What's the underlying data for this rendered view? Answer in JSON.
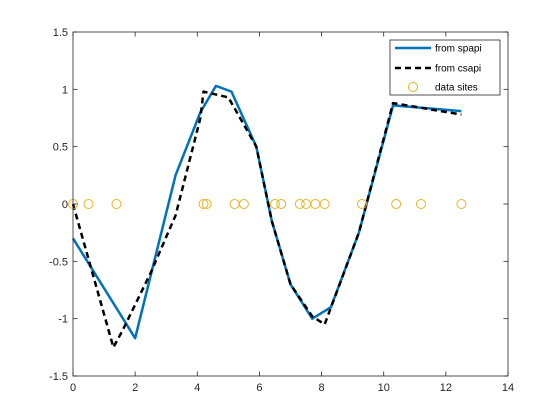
{
  "chart_data": {
    "type": "line",
    "title": "",
    "xlabel": "",
    "ylabel": "",
    "xlim": [
      0,
      14
    ],
    "ylim": [
      -1.5,
      1.5
    ],
    "xticks": [
      0,
      2,
      4,
      6,
      8,
      10,
      12,
      14
    ],
    "yticks": [
      -1.5,
      -1,
      -0.5,
      0,
      0.5,
      1,
      1.5
    ],
    "xtick_labels": [
      "0",
      "2",
      "4",
      "6",
      "8",
      "10",
      "12",
      "14"
    ],
    "ytick_labels": [
      "-1.5",
      "-1",
      "-0.5",
      "0",
      "0.5",
      "1",
      "1.5"
    ],
    "grid": false,
    "legend_position": "top-right",
    "series": [
      {
        "name": "from spapi",
        "style": "solid",
        "color": "#0072BD",
        "x": [
          0.0,
          2.0,
          3.3,
          4.1,
          4.6,
          5.1,
          5.9,
          6.4,
          7.0,
          7.7,
          8.3,
          9.2,
          10.3,
          12.5
        ],
        "y": [
          -0.3,
          -1.17,
          0.25,
          0.8,
          1.03,
          0.98,
          0.5,
          -0.15,
          -0.7,
          -1.0,
          -0.9,
          -0.25,
          0.86,
          0.81
        ]
      },
      {
        "name": "from csapi",
        "style": "dashed",
        "color": "#000000",
        "x": [
          0.0,
          1.3,
          1.6,
          2.5,
          3.3,
          4.1,
          4.2,
          5.0,
          5.9,
          6.4,
          7.0,
          7.7,
          8.1,
          9.2,
          10.3,
          12.5
        ],
        "y": [
          0.0,
          -1.25,
          -1.1,
          -0.6,
          -0.1,
          0.75,
          0.98,
          0.93,
          0.5,
          -0.15,
          -0.7,
          -0.98,
          -1.05,
          -0.25,
          0.88,
          0.78
        ]
      }
    ],
    "data_sites": {
      "name": "data sites",
      "marker": "circle-open",
      "color": "#EDB120",
      "x": [
        0.0,
        0.5,
        1.4,
        4.2,
        4.3,
        5.2,
        5.5,
        6.5,
        6.7,
        7.3,
        7.5,
        7.8,
        8.1,
        9.3,
        10.4,
        11.2,
        12.5
      ],
      "y": [
        0,
        0,
        0,
        0,
        0,
        0,
        0,
        0,
        0,
        0,
        0,
        0,
        0,
        0,
        0,
        0,
        0
      ]
    }
  }
}
